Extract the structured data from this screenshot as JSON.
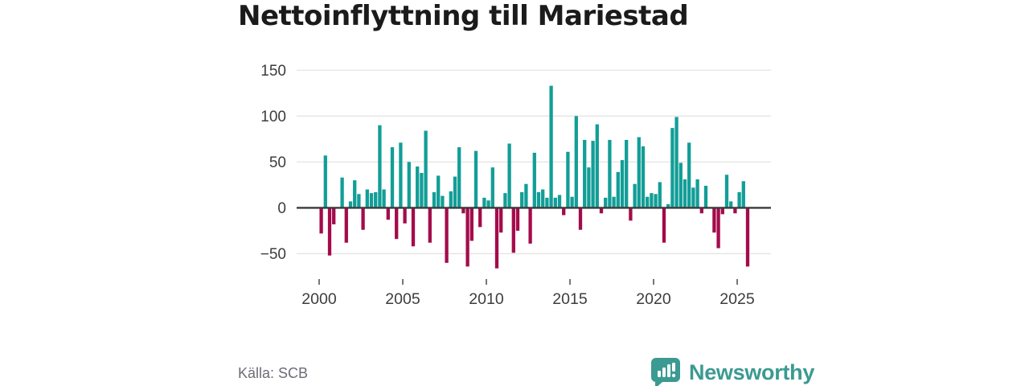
{
  "header": {
    "title": "Nettoinflyttning till Mariestad"
  },
  "footer": {
    "source_label": "Källa: SCB",
    "brand_name": "Newsworthy",
    "brand_color": "#3b9a92"
  },
  "chart_data": {
    "type": "bar",
    "title": "Nettoinflyttning till Mariestad",
    "frequency": "quarterly",
    "x_start": "2000-Q1",
    "x_end": "2025-Q3",
    "x_tick_labels": [
      "2000",
      "2005",
      "2010",
      "2015",
      "2020",
      "2025"
    ],
    "x_tick_years": [
      2000,
      2005,
      2010,
      2015,
      2020,
      2025
    ],
    "y_ticks": [
      150,
      100,
      50,
      0,
      -50
    ],
    "ylim": [
      -70,
      155
    ],
    "grid": true,
    "legend": false,
    "positive_color": "#129e97",
    "negative_color": "#a40b4b",
    "zero_line_color": "#3a3a3a",
    "gridline_color": "#e4e4e4",
    "values": [
      -28,
      57,
      -52,
      -18,
      0,
      33,
      -38,
      7,
      30,
      15,
      -24,
      20,
      16,
      17,
      90,
      20,
      -13,
      66,
      -34,
      71,
      -17,
      50,
      -42,
      45,
      38,
      84,
      -38,
      17,
      35,
      13,
      -60,
      18,
      34,
      66,
      -6,
      -64,
      -36,
      62,
      -21,
      11,
      8,
      44,
      -66,
      -27,
      16,
      70,
      -49,
      -25,
      17,
      26,
      -39,
      60,
      17,
      20,
      11,
      133,
      11,
      14,
      -8,
      61,
      12,
      100,
      -24,
      74,
      44,
      73,
      91,
      -6,
      11,
      74,
      12,
      39,
      52,
      74,
      -14,
      26,
      77,
      67,
      12,
      16,
      15,
      28,
      -38,
      4,
      87,
      99,
      49,
      31,
      71,
      22,
      31,
      -6,
      24,
      0,
      -27,
      -44,
      -7,
      36,
      7,
      -6,
      17,
      29,
      -64
    ]
  }
}
